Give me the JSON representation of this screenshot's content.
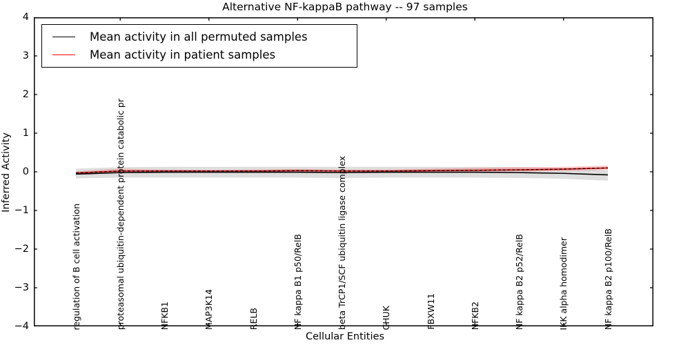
{
  "chart_data": {
    "type": "line",
    "title": "Alternative NF-kappaB pathway -- 97 samples",
    "xlabel": "Cellular Entities",
    "ylabel": "Inferred Activity",
    "ylim": [
      -4,
      4
    ],
    "yticks": [
      4,
      3,
      2,
      1,
      0,
      -1,
      -2,
      -3,
      -4
    ],
    "ytick_labels": [
      "4",
      "3",
      "2",
      "1",
      "0",
      "−1",
      "−2",
      "−3",
      "−4"
    ],
    "grid": false,
    "categories": [
      "regulation of B cell activation",
      "proteasomal ubiquitin-dependent protein catabolic pr",
      "NFKB1",
      "MAP3K14",
      "RELB",
      "NF kappa B1 p50/RelB",
      "beta TrCP1/SCF ubiquitin ligase complex",
      "CHUK",
      "FBXW11",
      "NFKB2",
      "NF kappa B2 p52/RelB",
      "IKK alpha homodimer",
      "NF kappa B2 p100/RelB"
    ],
    "series": [
      {
        "name": "Mean activity in all permuted samples",
        "color": "#000000",
        "style": "solid",
        "width": 1.6,
        "values": [
          -0.06,
          -0.02,
          -0.01,
          -0.01,
          -0.01,
          -0.01,
          -0.02,
          -0.01,
          -0.01,
          -0.01,
          -0.02,
          -0.04,
          -0.08
        ]
      },
      {
        "name": "Mean activity in patient samples",
        "color": "#ff0000",
        "style": "solid",
        "width": 1.6,
        "values": [
          -0.03,
          0.02,
          0.02,
          0.02,
          0.02,
          0.03,
          0.02,
          0.02,
          0.03,
          0.04,
          0.05,
          0.07,
          0.1
        ]
      },
      {
        "name": "patient-mean-dashed-overlay",
        "color": "#000000",
        "style": "dashed",
        "width": 1.4,
        "values": [
          -0.03,
          0.02,
          0.02,
          0.02,
          0.02,
          0.03,
          0.02,
          0.02,
          0.03,
          0.04,
          0.05,
          0.07,
          0.1
        ]
      }
    ],
    "bands": [
      {
        "name": "permuted-samples-range",
        "color": "#000000",
        "opacity": 0.13,
        "upper": [
          0.08,
          0.12,
          0.13,
          0.13,
          0.13,
          0.13,
          0.13,
          0.13,
          0.13,
          0.13,
          0.12,
          0.09,
          0.04
        ],
        "lower": [
          -0.17,
          -0.15,
          -0.15,
          -0.15,
          -0.15,
          -0.15,
          -0.16,
          -0.15,
          -0.15,
          -0.15,
          -0.16,
          -0.18,
          -0.23
        ]
      },
      {
        "name": "patient-samples-range",
        "color": "#ff0000",
        "opacity": 0.22,
        "upper": [
          0.01,
          0.08,
          0.06,
          0.05,
          0.06,
          0.07,
          0.06,
          0.06,
          0.08,
          0.1,
          0.12,
          0.13,
          0.16
        ],
        "lower": [
          -0.07,
          -0.02,
          -0.02,
          -0.02,
          -0.02,
          -0.01,
          -0.02,
          -0.01,
          -0.01,
          0.0,
          0.01,
          0.02,
          0.05
        ]
      }
    ],
    "legend": {
      "position": "upper left",
      "entries": [
        {
          "label": "Mean activity in all permuted samples",
          "color": "#000000"
        },
        {
          "label": "Mean activity in patient samples",
          "color": "#ff0000"
        }
      ]
    }
  }
}
